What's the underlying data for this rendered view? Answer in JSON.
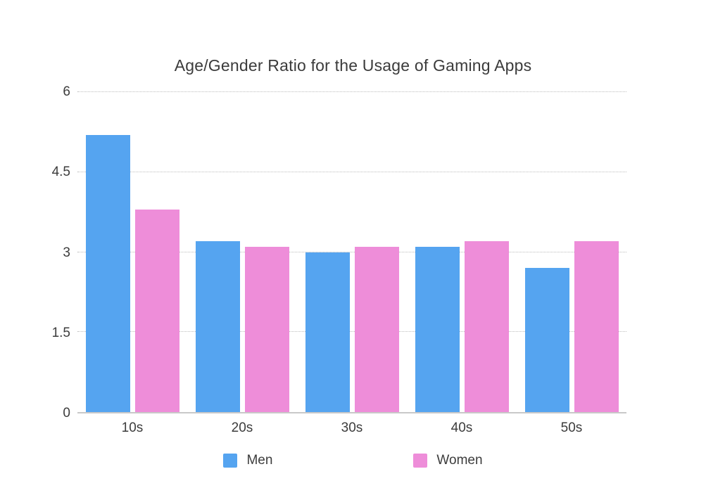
{
  "chart_data": {
    "type": "bar",
    "title": "Age/Gender Ratio for the Usage of Gaming Apps",
    "categories": [
      "10s",
      "20s",
      "30s",
      "40s",
      "50s"
    ],
    "series": [
      {
        "name": "Men",
        "color": "#55a4f0",
        "values": [
          5.2,
          3.2,
          3.0,
          3.1,
          2.7
        ]
      },
      {
        "name": "Women",
        "color": "#ee8dd9",
        "values": [
          3.8,
          3.1,
          3.1,
          3.2,
          3.2
        ]
      }
    ],
    "ylim": [
      0,
      6
    ],
    "yticks": [
      0,
      1.5,
      3,
      4.5,
      6
    ],
    "grid": "horizontal-dotted",
    "legend_position": "bottom",
    "background": "#ffffff"
  }
}
